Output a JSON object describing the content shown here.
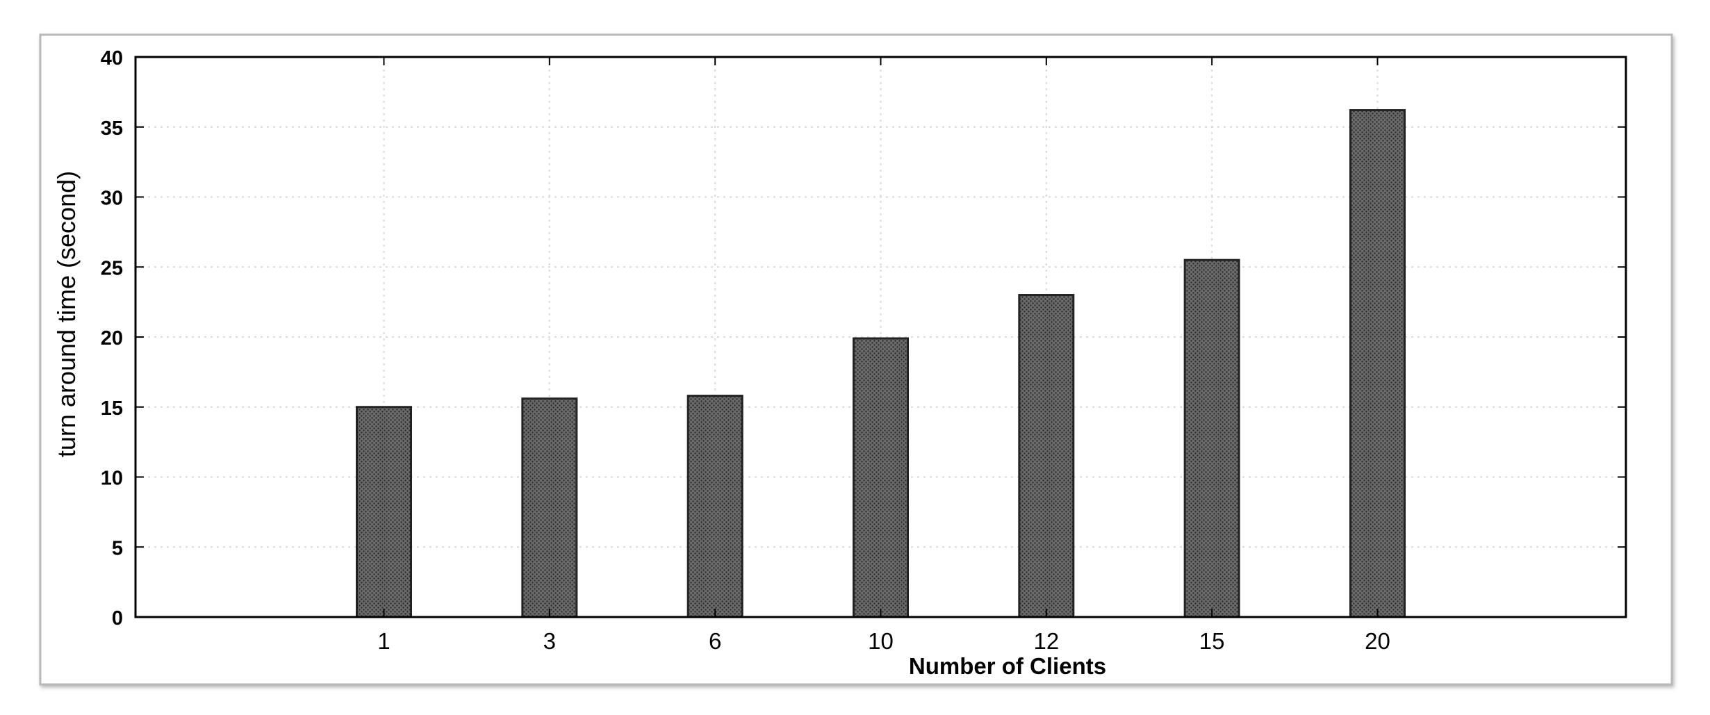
{
  "chart_data": {
    "type": "bar",
    "categories": [
      "1",
      "3",
      "6",
      "10",
      "12",
      "15",
      "20"
    ],
    "values": [
      15.0,
      15.6,
      15.8,
      19.9,
      23.0,
      25.5,
      36.2
    ],
    "xlabel": "Number of Clients",
    "ylabel": "turn around time (second)",
    "ylim": [
      0,
      40
    ],
    "yticks": [
      0,
      5,
      10,
      15,
      20,
      25,
      30,
      35,
      40
    ],
    "grid": true,
    "legend": "none",
    "colors": {
      "bar_fill": "#555555",
      "bar_stroke": "#222222",
      "axis": "#000000",
      "grid": "#d9d9d9"
    }
  }
}
